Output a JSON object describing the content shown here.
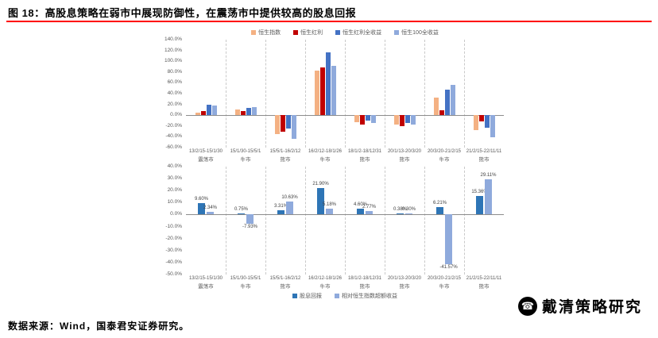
{
  "header": {
    "title": "图 18：高股息策略在弱市中展现防御性，在震荡市中提供较高的股息回报"
  },
  "footer": {
    "source": "数据来源：Wind，国泰君安证券研究。",
    "logo_text": "戴清策略研究",
    "logo_icon": "megaphone-icon"
  },
  "chart_data": [
    {
      "type": "bar",
      "categories": [
        "13/2/15-15/1/30",
        "15/1/30-15/5/1",
        "15/5/1-16/2/12",
        "16/2/12-18/1/26",
        "18/1/2-18/12/31",
        "20/1/13-20/3/20",
        "20/3/20-21/2/15",
        "21/2/15-22/11/11"
      ],
      "phases": [
        "震荡市",
        "牛市",
        "熊市",
        "牛市",
        "熊市",
        "熊市",
        "牛市",
        "熊市"
      ],
      "series": [
        {
          "name": "恒生指数",
          "color": "#F4B183",
          "values": [
            5,
            10,
            -35,
            82,
            -13,
            -18,
            32,
            -28
          ]
        },
        {
          "name": "恒生红利",
          "color": "#C00000",
          "values": [
            7,
            8,
            -30,
            88,
            -17,
            -20,
            9,
            -12
          ]
        },
        {
          "name": "恒生红利全收益",
          "color": "#4472C4",
          "values": [
            20,
            13,
            -24,
            116,
            -10,
            -15,
            47,
            -23
          ]
        },
        {
          "name": "恒生100全收益",
          "color": "#8FAADC",
          "values": [
            18,
            15,
            -44,
            92,
            -14,
            -18,
            56,
            -41
          ]
        }
      ],
      "ylim": [
        -60,
        140
      ],
      "yticks": [
        "140.0%",
        "120.0%",
        "100.0%",
        "80.0%",
        "60.0%",
        "40.0%",
        "20.0%",
        "0.0%",
        "-20.0%",
        "-40.0%",
        "-60.0%"
      ],
      "legend_position": "top",
      "grid": "vertical-dashed"
    },
    {
      "type": "bar",
      "categories": [
        "13/2/15-15/1/30",
        "15/1/30-15/5/1",
        "15/5/1-16/2/12",
        "16/2/12-18/1/26",
        "18/1/2-18/12/31",
        "20/1/13-20/3/20",
        "20/3/20-21/2/15",
        "21/2/15-22/11/11"
      ],
      "phases": [
        "震荡市",
        "牛市",
        "熊市",
        "牛市",
        "熊市",
        "熊市",
        "牛市",
        "熊市"
      ],
      "series": [
        {
          "name": "股息回报",
          "color": "#2E75B6",
          "values": [
            9.6,
            0.75,
            3.31,
            21.9,
            4.6,
            0.38,
            6.21,
            15.36
          ],
          "labels": [
            "9.60%",
            "0.75%",
            "3.31%",
            "21.90%",
            "4.60%",
            "0.38%",
            "6.21%",
            "15.36%"
          ]
        },
        {
          "name": "相对恒生指数超额收益",
          "color": "#8FAADC",
          "values": [
            2.34,
            -7.93,
            10.63,
            5.18,
            2.77,
            0.3,
            -41.57,
            29.11
          ],
          "labels": [
            "2.34%",
            "-7.93%",
            "10.63%",
            "5.18%",
            "2.77%",
            "0.30%",
            "-41.57%",
            "29.11%"
          ]
        }
      ],
      "ylim": [
        -50,
        40
      ],
      "yticks": [
        "40.0%",
        "30.0%",
        "20.0%",
        "10.0%",
        "0.0%",
        "-10.0%",
        "-20.0%",
        "-30.0%",
        "-40.0%",
        "-50.0%"
      ],
      "legend_position": "bottom",
      "grid": "vertical-dashed"
    }
  ]
}
